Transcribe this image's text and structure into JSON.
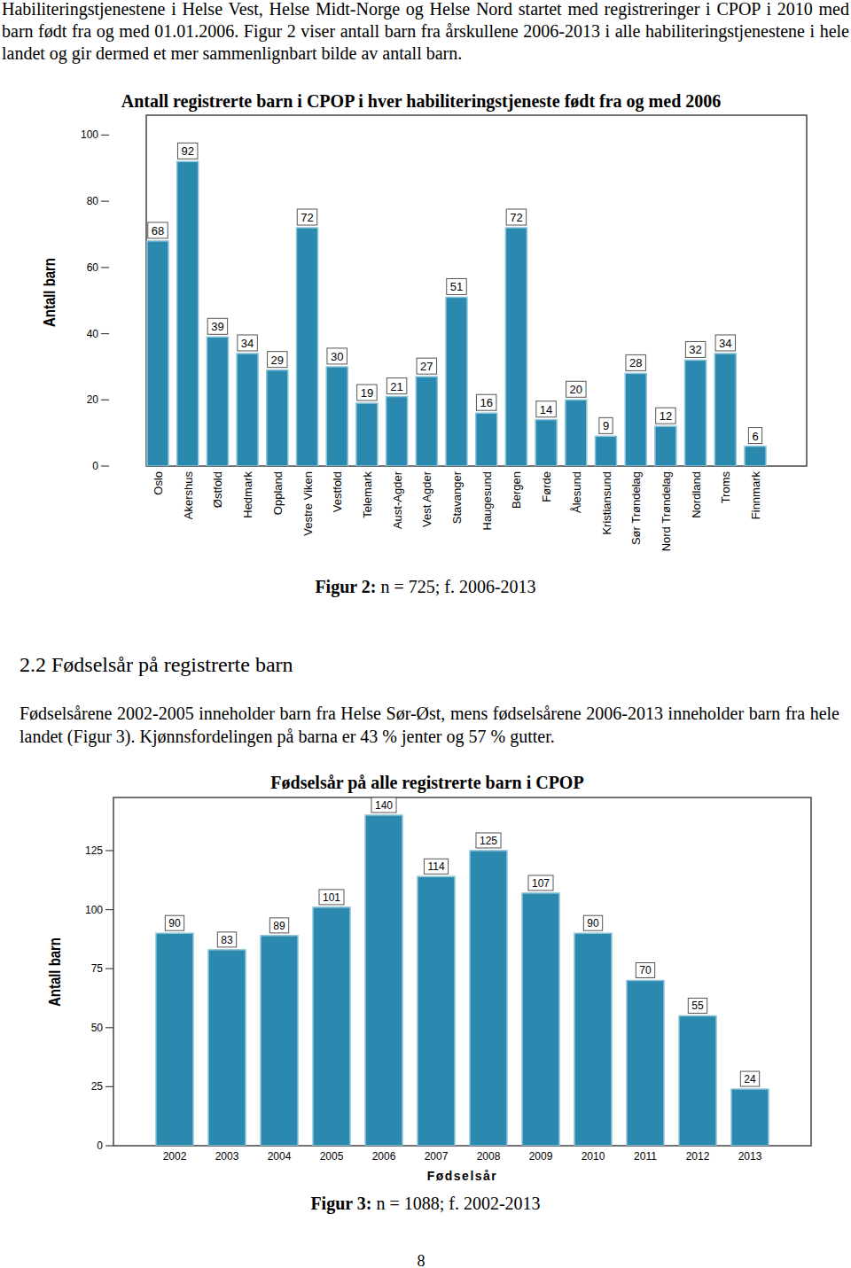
{
  "intro": "Habiliteringstjenestene i Helse Vest, Helse Midt-Norge og Helse Nord startet med registreringer i CPOP i 2010 med barn født fra og med 01.01.2006. Figur 2 viser antall barn fra årskullene 2006-2013 i alle habiliteringstjenestene i hele landet og gir dermed et mer sammenlignbart bilde av antall barn.",
  "section": {
    "heading": "2.2 Fødselsår på registrerte barn",
    "text": "Fødselsårene 2002-2005 inneholder barn fra Helse Sør-Øst, mens fødselsårene 2006-2013 inneholder barn fra hele landet (Figur 3). Kjønnsfordelingen på barna er 43 % jenter og 57 % gutter."
  },
  "figures": [
    {
      "label": "Figur 2:",
      "text": "n = 725; f. 2006-2013"
    },
    {
      "label": "Figur 3:",
      "text": "n = 1088; f. 2002-2013"
    }
  ],
  "page_number": 8,
  "chart_data": [
    {
      "type": "bar",
      "title": "Antall registrerte barn i CPOP i hver habiliteringstjeneste født fra og med 2006",
      "y_label": "Antall barn",
      "categories": [
        "Oslo",
        "Akershus",
        "Østfold",
        "Hedmark",
        "Oppland",
        "Vestre Viken",
        "Vestfold",
        "Telemark",
        "Aust-Agder",
        "Vest Agder",
        "Stavanger",
        "Haugesund",
        "Bergen",
        "Førde",
        "Ålesund",
        "Kristiansund",
        "Sør Trøndelag",
        "Nord Trøndelag",
        "Nordland",
        "Troms",
        "Finnmark"
      ],
      "values": [
        68,
        92,
        39,
        34,
        29,
        72,
        30,
        19,
        21,
        27,
        51,
        16,
        72,
        14,
        20,
        9,
        28,
        12,
        32,
        34,
        6
      ],
      "color": "#2b89b0",
      "ylim": [
        0,
        106
      ],
      "yticks": [
        0,
        20,
        40,
        60,
        80,
        100
      ],
      "grid": false,
      "data_labels": true
    },
    {
      "type": "bar",
      "title": "Fødselsår på alle registrerte barn i CPOP",
      "y_label": "Antall barn",
      "x_label": "Fødselsår",
      "categories": [
        "2002",
        "2003",
        "2004",
        "2005",
        "2006",
        "2007",
        "2008",
        "2009",
        "2010",
        "2011",
        "2012",
        "2013"
      ],
      "values": [
        90,
        83,
        89,
        101,
        140,
        114,
        125,
        107,
        90,
        70,
        55,
        24
      ],
      "color": "#2b89b0",
      "ylim": [
        0,
        147.5
      ],
      "yticks": [
        0,
        25,
        50,
        75,
        100,
        125
      ],
      "grid": false,
      "data_labels": true
    }
  ]
}
